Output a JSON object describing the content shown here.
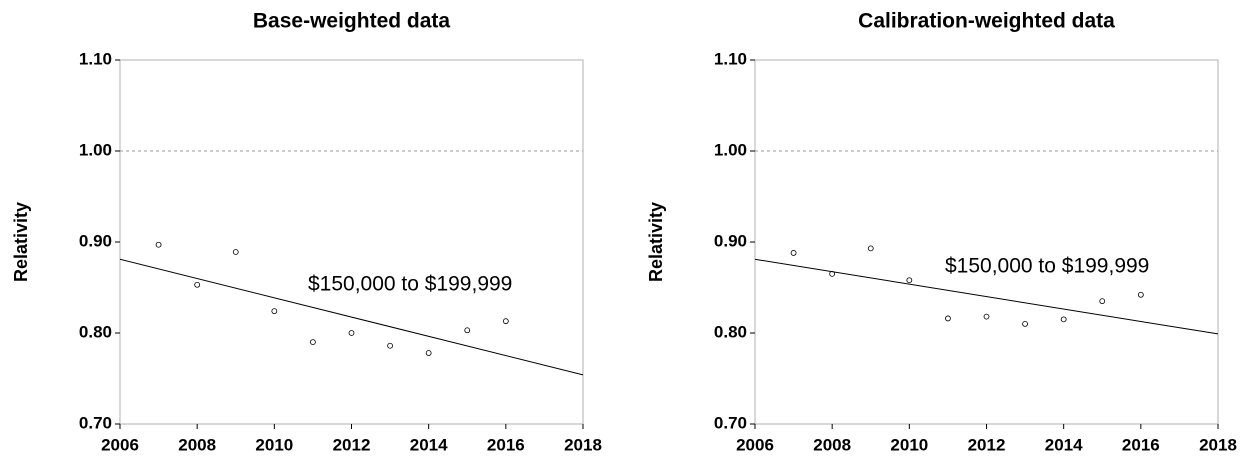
{
  "chart_data": [
    {
      "type": "scatter",
      "title": "Base-weighted data",
      "y_label": "Relativity",
      "annotation": "$150,000 to $199,999",
      "x": [
        2007,
        2008,
        2009,
        2010,
        2011,
        2012,
        2013,
        2014,
        2015,
        2016
      ],
      "values": [
        0.897,
        0.853,
        0.889,
        0.824,
        0.79,
        0.8,
        0.786,
        0.778,
        0.803,
        0.813
      ],
      "trendline": {
        "x": [
          2006,
          2018
        ],
        "values": [
          0.881,
          0.754
        ]
      },
      "reference_line": 1,
      "xlim": [
        2006,
        2018
      ],
      "xticks": [
        2006,
        2008,
        2010,
        2012,
        2014,
        2016,
        2018
      ],
      "ylim": [
        0.7,
        1.1
      ],
      "yticks": [
        {
          "value": 0.7,
          "label": "0.70"
        },
        {
          "value": 0.8,
          "label": "0.80"
        },
        {
          "value": 0.9,
          "label": "0.90"
        },
        {
          "value": 1.0,
          "label": "1.00"
        },
        {
          "value": 1.1,
          "label": "1.10"
        }
      ]
    },
    {
      "type": "scatter",
      "title": "Calibration-weighted data",
      "y_label": "Relativity",
      "annotation": "$150,000 to $199,999",
      "x": [
        2007,
        2008,
        2009,
        2010,
        2011,
        2012,
        2013,
        2014,
        2015,
        2016
      ],
      "values": [
        0.888,
        0.865,
        0.893,
        0.858,
        0.816,
        0.818,
        0.81,
        0.815,
        0.835,
        0.842
      ],
      "trendline": {
        "x": [
          2006,
          2018
        ],
        "values": [
          0.881,
          0.799
        ]
      },
      "reference_line": 1,
      "xlim": [
        2006,
        2018
      ],
      "xticks": [
        2006,
        2008,
        2010,
        2012,
        2014,
        2016,
        2018
      ],
      "ylim": [
        0.7,
        1.1
      ],
      "yticks": [
        {
          "value": 0.7,
          "label": "0.70"
        },
        {
          "value": 0.8,
          "label": "0.80"
        },
        {
          "value": 0.9,
          "label": "0.90"
        },
        {
          "value": 1.0,
          "label": "1.00"
        },
        {
          "value": 1.1,
          "label": "1.10"
        }
      ]
    }
  ]
}
